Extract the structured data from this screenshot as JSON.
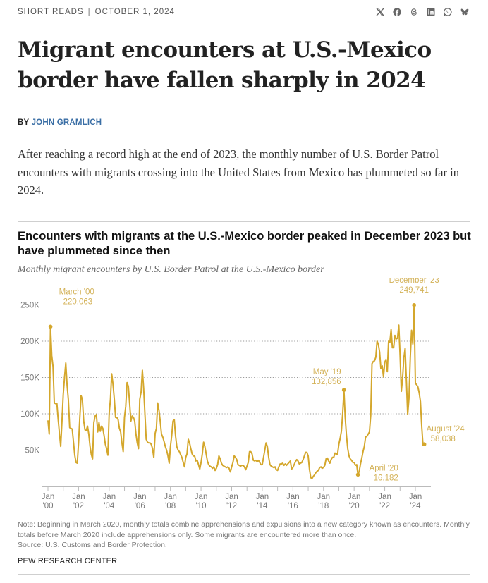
{
  "header": {
    "section": "SHORT READS",
    "separator": "|",
    "date": "OCTOBER 1, 2024",
    "share_icons": [
      "x-icon",
      "facebook-icon",
      "threads-icon",
      "linkedin-icon",
      "whatsapp-icon",
      "bluesky-icon"
    ]
  },
  "article": {
    "headline": "Migrant encounters at U.S.-Mexico border have fallen sharply in 2024",
    "byline_prefix": "BY",
    "author": "JOHN GRAMLICH",
    "lede": "After reaching a record high at the end of 2023, the monthly number of U.S. Border Patrol encounters with migrants crossing into the United States from Mexico has plummeted so far in 2024."
  },
  "colors": {
    "line": "#d4a72c",
    "annotation": "#d4b35a",
    "author_link": "#3a6ea5",
    "gridline": "#9a9a9a",
    "axis_text": "#777777"
  },
  "chart_data": {
    "type": "line",
    "title": "Encounters with migrants at the U.S.-Mexico border peaked in December 2023 but have plummeted since then",
    "subtitle": "Monthly migrant encounters by U.S. Border Patrol at the U.S.-Mexico border",
    "xlabel": "",
    "ylabel": "",
    "x_start": "2000-01",
    "x_end": "2024-08",
    "ylim": [
      0,
      250000
    ],
    "grid": true,
    "y_ticks": [
      {
        "value": 50000,
        "label": "50K"
      },
      {
        "value": 100000,
        "label": "100K"
      },
      {
        "value": 150000,
        "label": "150K"
      },
      {
        "value": 200000,
        "label": "200K"
      },
      {
        "value": 250000,
        "label": "250K"
      }
    ],
    "x_ticks": [
      {
        "year": 2000,
        "label1": "Jan",
        "label2": "'00"
      },
      {
        "year": 2002,
        "label1": "Jan",
        "label2": "'02"
      },
      {
        "year": 2004,
        "label1": "Jan",
        "label2": "'04"
      },
      {
        "year": 2006,
        "label1": "Jan",
        "label2": "'06"
      },
      {
        "year": 2008,
        "label1": "Jan",
        "label2": "'08"
      },
      {
        "year": 2010,
        "label1": "Jan",
        "label2": "'10"
      },
      {
        "year": 2012,
        "label1": "Jan",
        "label2": "'12"
      },
      {
        "year": 2014,
        "label1": "Jan",
        "label2": "'14"
      },
      {
        "year": 2016,
        "label1": "Jan",
        "label2": "'16"
      },
      {
        "year": 2018,
        "label1": "Jan",
        "label2": "'18"
      },
      {
        "year": 2020,
        "label1": "Jan",
        "label2": "'20"
      },
      {
        "year": 2022,
        "label1": "Jan",
        "label2": "'22"
      },
      {
        "year": 2024,
        "label1": "Jan",
        "label2": "'24"
      }
    ],
    "series": [
      {
        "name": "Monthly encounters",
        "values": [
          91000,
          72000,
          220063,
          180000,
          165000,
          115000,
          114000,
          114000,
          92000,
          73000,
          55000,
          90000,
          127000,
          150000,
          170000,
          140000,
          120000,
          81000,
          80000,
          79000,
          61000,
          43000,
          33000,
          32000,
          60000,
          95000,
          125000,
          120000,
          90000,
          78000,
          77000,
          83000,
          72000,
          55000,
          44000,
          38000,
          88000,
          97000,
          99000,
          75000,
          88000,
          76000,
          83000,
          80000,
          70000,
          58000,
          52000,
          43000,
          100000,
          120000,
          155000,
          140000,
          120000,
          95000,
          95000,
          92000,
          80000,
          75000,
          60000,
          48000,
          95000,
          110000,
          143000,
          138000,
          115000,
          90000,
          97000,
          95000,
          90000,
          72000,
          60000,
          52000,
          120000,
          130000,
          160000,
          135000,
          100000,
          65000,
          61000,
          60000,
          60000,
          58000,
          52000,
          40000,
          73000,
          80000,
          115000,
          105000,
          90000,
          72000,
          68000,
          62000,
          55000,
          50000,
          43000,
          32000,
          55000,
          70000,
          90000,
          92000,
          70000,
          55000,
          50000,
          48000,
          44000,
          40000,
          33000,
          27000,
          40000,
          45000,
          65000,
          60000,
          52000,
          45000,
          42000,
          42000,
          35000,
          36000,
          30000,
          24000,
          33000,
          45000,
          61000,
          55000,
          45000,
          35000,
          30000,
          28000,
          27000,
          25000,
          27000,
          22000,
          25000,
          30000,
          42000,
          38000,
          32000,
          29000,
          28000,
          27000,
          26000,
          27000,
          25000,
          20000,
          27000,
          33000,
          42000,
          40000,
          37000,
          30000,
          29000,
          28000,
          29000,
          29000,
          27000,
          23000,
          28000,
          33000,
          48000,
          48000,
          45000,
          36000,
          35000,
          36000,
          34000,
          36000,
          33000,
          30000,
          30000,
          40000,
          50000,
          60000,
          55000,
          40000,
          30000,
          28000,
          27000,
          26000,
          27000,
          23000,
          22000,
          27000,
          31000,
          31000,
          32000,
          29000,
          31000,
          29000,
          31000,
          33000,
          35000,
          24000,
          26000,
          30000,
          34000,
          37000,
          35000,
          31000,
          32000,
          33000,
          37000,
          42000,
          47000,
          47000,
          42000,
          24000,
          12000,
          11000,
          14000,
          16000,
          19000,
          21000,
          22000,
          26000,
          27000,
          25000,
          26000,
          29000,
          38000,
          39000,
          35000,
          32000,
          37000,
          40000,
          40000,
          46000,
          45000,
          44000,
          58000,
          66000,
          76000,
          100000,
          132856,
          95000,
          70000,
          52000,
          42000,
          38000,
          36000,
          33000,
          33000,
          29000,
          30000,
          16182,
          21000,
          31000,
          39000,
          48000,
          55000,
          68000,
          69000,
          72000,
          75000,
          98000,
          169000,
          172000,
          173000,
          178000,
          200000,
          196000,
          185000,
          162000,
          166000,
          151000,
          171000,
          175000,
          158000,
          200000,
          198000,
          216000,
          191000,
          191000,
          208000,
          203000,
          204000,
          222000,
          181000,
          131000,
          150000,
          177000,
          190000,
          145000,
          99000,
          121000,
          178000,
          215000,
          196000,
          249741,
          142000,
          140000,
          137000,
          129000,
          117000,
          83000,
          57000,
          58038
        ]
      }
    ],
    "annotations": [
      {
        "label": "March '00",
        "value_label": "220,063",
        "month": "2000-03",
        "value": 220063
      },
      {
        "label": "May '19",
        "value_label": "132,856",
        "month": "2019-05",
        "value": 132856
      },
      {
        "label": "April '20",
        "value_label": "16,182",
        "month": "2020-04",
        "value": 16182
      },
      {
        "label": "December '23",
        "value_label": "249,741",
        "month": "2023-12",
        "value": 249741
      },
      {
        "label": "August '24",
        "value_label": "58,038",
        "month": "2024-08",
        "value": 58038
      }
    ]
  },
  "footer": {
    "note": "Note: Beginning in March 2020, monthly totals combine apprehensions and expulsions into a new category known as encounters. Monthly totals before March 2020 include apprehensions only. Some migrants are encountered more than once.",
    "source": "Source: U.S. Customs and Border Protection.",
    "organization": "PEW RESEARCH CENTER"
  }
}
